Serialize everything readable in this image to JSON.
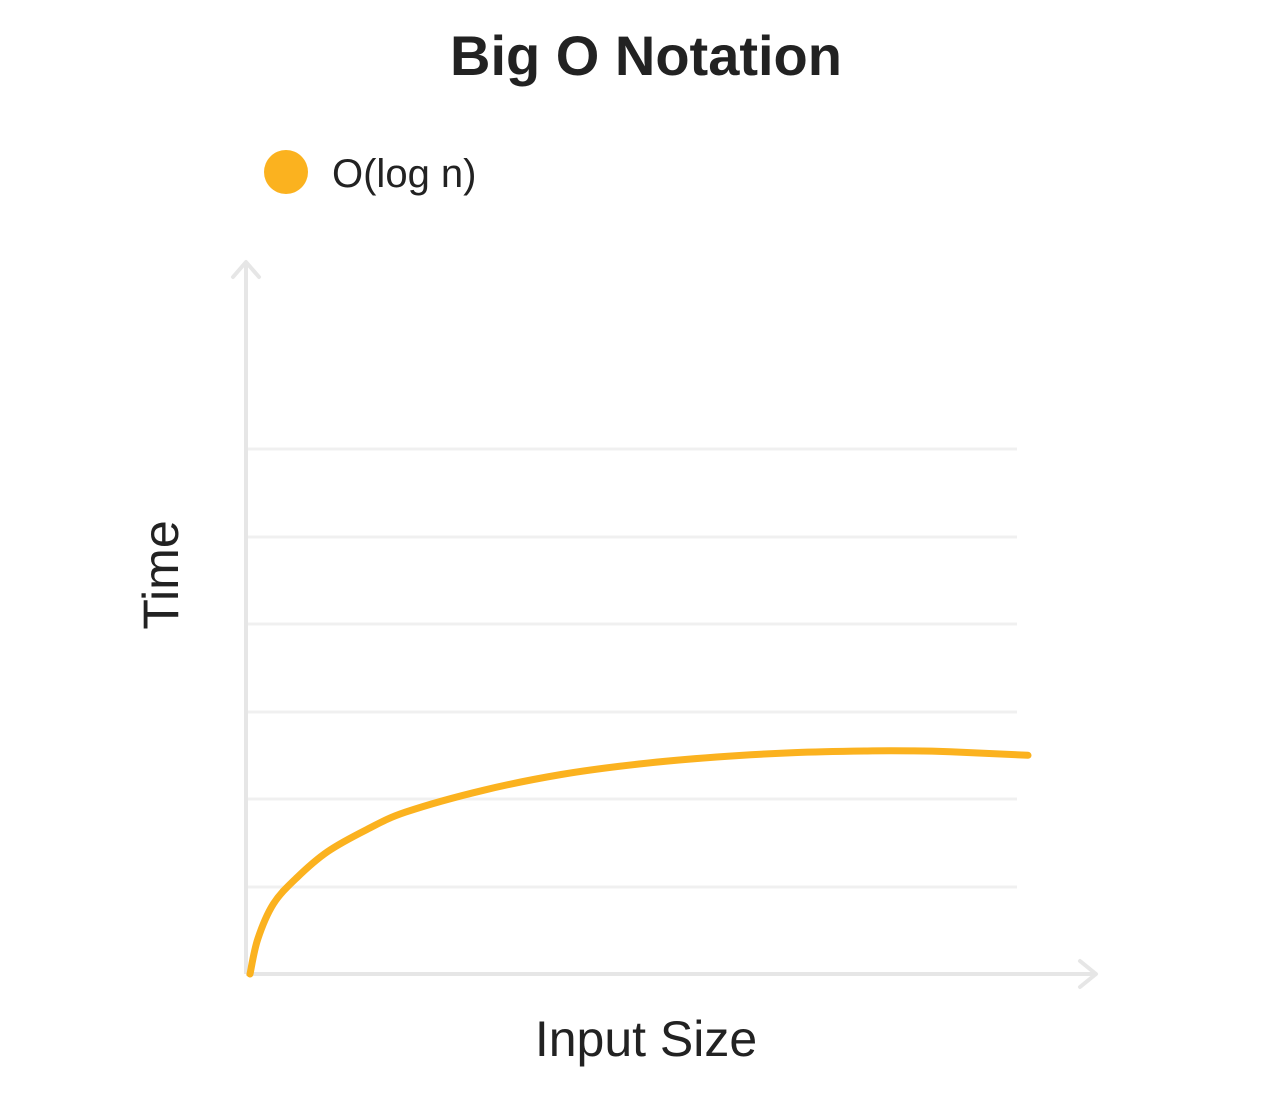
{
  "chart_data": {
    "type": "line",
    "title": "Big O Notation",
    "xlabel": "Input Size",
    "ylabel": "Time",
    "grid": true,
    "legend_position": "top-left",
    "colors": {
      "series": "#fbb21f",
      "axis": "#e6e6e6",
      "grid": "#f0f0f0",
      "text": "#222222"
    },
    "series": [
      {
        "name": "O(log n)",
        "x": [
          0,
          0.01,
          0.03,
          0.06,
          0.1,
          0.15,
          0.2,
          0.3,
          0.4,
          0.5,
          0.6,
          0.7,
          0.8,
          0.85,
          0.9,
          1.0
        ],
        "y": [
          0,
          0.4,
          0.8,
          1.1,
          1.4,
          1.65,
          1.85,
          2.1,
          2.28,
          2.4,
          2.48,
          2.53,
          2.55,
          2.55,
          2.54,
          2.5
        ]
      }
    ],
    "xlim": [
      0,
      1
    ],
    "ylim": [
      0,
      7
    ]
  }
}
